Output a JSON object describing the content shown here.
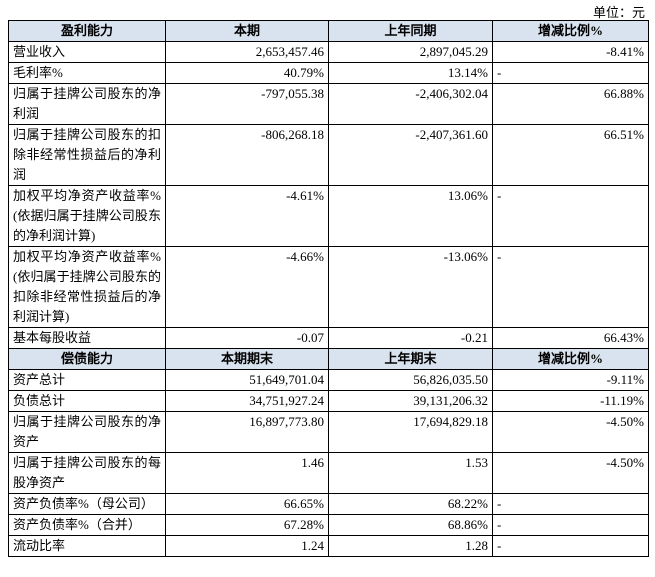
{
  "unit": "单位：元",
  "table": {
    "sections": [
      {
        "header": [
          "盈利能力",
          "本期",
          "上年同期",
          "增减比例%"
        ],
        "rows": [
          [
            "营业收入",
            "2,653,457.46",
            "2,897,045.29",
            "-8.41%"
          ],
          [
            "毛利率%",
            "40.79%",
            "13.14%",
            "-"
          ],
          [
            "归属于挂牌公司股东的净利润",
            "-797,055.38",
            "-2,406,302.04",
            "66.88%"
          ],
          [
            "归属于挂牌公司股东的扣除非经常性损益后的净利润",
            "-806,268.18",
            "-2,407,361.60",
            "66.51%"
          ],
          [
            "加权平均净资产收益率%(依据归属于挂牌公司股东的净利润计算)",
            "-4.61%",
            "13.06%",
            "-"
          ],
          [
            "加权平均净资产收益率%(依归属于挂牌公司股东的扣除非经常性损益后的净利润计算)",
            "-4.66%",
            "-13.06%",
            "-"
          ],
          [
            "基本每股收益",
            "-0.07",
            "-0.21",
            "66.43%"
          ]
        ]
      },
      {
        "header": [
          "偿债能力",
          "本期期末",
          "上年期末",
          "增减比例%"
        ],
        "rows": [
          [
            "资产总计",
            "51,649,701.04",
            "56,826,035.50",
            "-9.11%"
          ],
          [
            "负债总计",
            "34,751,927.24",
            "39,131,206.32",
            "-11.19%"
          ],
          [
            "归属于挂牌公司股东的净资产",
            "16,897,773.80",
            "17,694,829.18",
            "-4.50%"
          ],
          [
            "归属于挂牌公司股东的每股净资产",
            "1.46",
            "1.53",
            "-4.50%"
          ],
          [
            "资产负债率%（母公司）",
            "66.65%",
            "68.22%",
            "-"
          ],
          [
            "资产负债率%（合并）",
            "67.28%",
            "68.86%",
            "-"
          ],
          [
            "流动比率",
            "1.24",
            "1.28",
            "-"
          ]
        ]
      }
    ]
  }
}
